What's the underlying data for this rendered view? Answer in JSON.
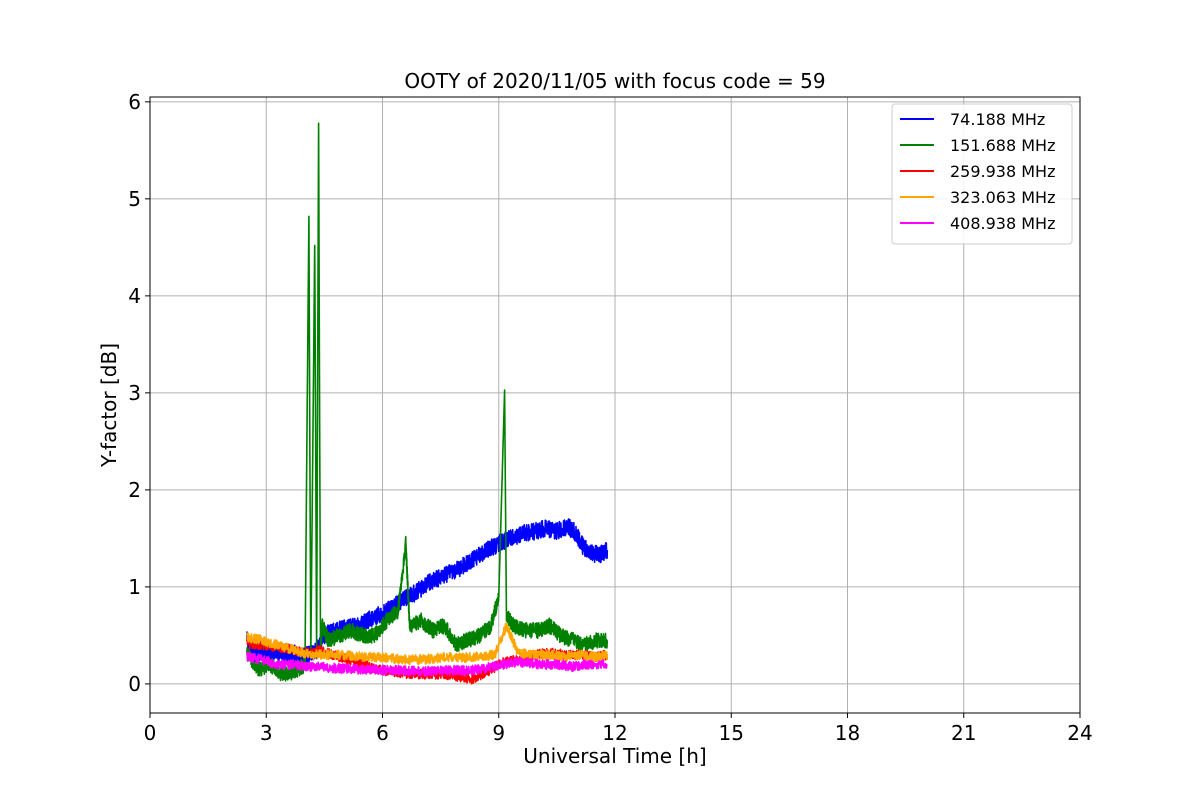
{
  "chart_data": {
    "type": "line",
    "title": "OOTY of 2020/11/05 with focus code = 59",
    "xlabel": "Universal Time [h]",
    "ylabel": "Y-factor [dB]",
    "xlim": [
      0,
      24
    ],
    "ylim": [
      -0.3,
      6.05
    ],
    "xticks": [
      0,
      3,
      6,
      9,
      12,
      15,
      18,
      21,
      24
    ],
    "yticks": [
      0,
      1,
      2,
      3,
      4,
      5,
      6
    ],
    "grid": true,
    "legend_position": "top-right",
    "series": [
      {
        "name": " 74.188 MHz",
        "color": "#0000ff",
        "x": [
          2.5,
          2.7,
          2.9,
          3.1,
          3.3,
          3.5,
          3.7,
          3.9,
          4.1,
          4.3,
          4.5,
          4.8,
          5.1,
          5.4,
          5.7,
          6.0,
          6.3,
          6.6,
          6.9,
          7.2,
          7.5,
          7.8,
          8.1,
          8.4,
          8.7,
          9.0,
          9.3,
          9.6,
          9.9,
          10.2,
          10.5,
          10.8,
          11.0,
          11.2,
          11.4,
          11.6,
          11.8
        ],
        "y": [
          0.45,
          0.3,
          0.35,
          0.3,
          0.33,
          0.3,
          0.32,
          0.28,
          0.3,
          0.35,
          0.5,
          0.55,
          0.58,
          0.6,
          0.68,
          0.72,
          0.8,
          0.88,
          0.95,
          1.05,
          1.1,
          1.15,
          1.22,
          1.3,
          1.38,
          1.45,
          1.5,
          1.55,
          1.57,
          1.6,
          1.58,
          1.62,
          1.55,
          1.4,
          1.35,
          1.33,
          1.38
        ]
      },
      {
        "name": "151.688 MHz",
        "color": "#008000",
        "x": [
          2.5,
          2.8,
          3.1,
          3.4,
          3.7,
          4.0,
          4.1,
          4.15,
          4.25,
          4.3,
          4.35,
          4.4,
          4.45,
          4.6,
          4.9,
          5.2,
          5.5,
          5.8,
          6.1,
          6.4,
          6.6,
          6.7,
          7.0,
          7.3,
          7.6,
          7.9,
          8.2,
          8.5,
          8.8,
          9.0,
          9.15,
          9.2,
          9.4,
          9.7,
          10.0,
          10.3,
          10.6,
          10.9,
          11.2,
          11.5,
          11.8
        ],
        "y": [
          0.3,
          0.15,
          0.2,
          0.1,
          0.12,
          0.2,
          4.82,
          0.3,
          4.52,
          0.3,
          5.78,
          0.4,
          0.6,
          0.45,
          0.5,
          0.55,
          0.5,
          0.5,
          0.65,
          0.75,
          1.45,
          0.6,
          0.65,
          0.55,
          0.6,
          0.4,
          0.45,
          0.5,
          0.6,
          0.9,
          3.03,
          0.7,
          0.6,
          0.55,
          0.55,
          0.6,
          0.5,
          0.45,
          0.4,
          0.45,
          0.45
        ]
      },
      {
        "name": "259.938 MHz",
        "color": "#ff0000",
        "x": [
          2.5,
          2.9,
          3.3,
          3.7,
          4.1,
          4.4,
          4.7,
          5.1,
          5.5,
          5.9,
          6.3,
          6.7,
          7.1,
          7.5,
          7.9,
          8.3,
          8.7,
          9.1,
          9.5,
          9.9,
          10.3,
          10.7,
          11.1,
          11.5,
          11.8
        ],
        "y": [
          0.42,
          0.4,
          0.38,
          0.35,
          0.32,
          0.35,
          0.3,
          0.25,
          0.2,
          0.15,
          0.12,
          0.1,
          0.1,
          0.1,
          0.08,
          0.05,
          0.12,
          0.22,
          0.25,
          0.3,
          0.32,
          0.3,
          0.3,
          0.28,
          0.3
        ]
      },
      {
        "name": "323.063 MHz",
        "color": "#ffa500",
        "x": [
          2.5,
          2.9,
          3.3,
          3.7,
          4.1,
          4.5,
          4.9,
          5.3,
          5.7,
          6.1,
          6.5,
          6.9,
          7.3,
          7.7,
          8.1,
          8.5,
          8.9,
          9.2,
          9.5,
          9.9,
          10.3,
          10.7,
          11.1,
          11.5,
          11.8
        ],
        "y": [
          0.48,
          0.45,
          0.4,
          0.35,
          0.3,
          0.3,
          0.3,
          0.28,
          0.28,
          0.27,
          0.25,
          0.25,
          0.26,
          0.28,
          0.27,
          0.28,
          0.3,
          0.6,
          0.32,
          0.3,
          0.3,
          0.28,
          0.3,
          0.28,
          0.3
        ]
      },
      {
        "name": "408.938 MHz",
        "color": "#ff00ff",
        "x": [
          2.5,
          2.9,
          3.3,
          3.7,
          4.1,
          4.5,
          4.9,
          5.3,
          5.7,
          6.1,
          6.5,
          6.9,
          7.3,
          7.7,
          8.1,
          8.5,
          8.9,
          9.3,
          9.7,
          10.1,
          10.5,
          10.9,
          11.3,
          11.8
        ],
        "y": [
          0.28,
          0.25,
          0.2,
          0.2,
          0.18,
          0.17,
          0.16,
          0.15,
          0.15,
          0.14,
          0.14,
          0.13,
          0.13,
          0.14,
          0.14,
          0.15,
          0.18,
          0.22,
          0.22,
          0.2,
          0.2,
          0.18,
          0.2,
          0.2
        ]
      }
    ]
  }
}
